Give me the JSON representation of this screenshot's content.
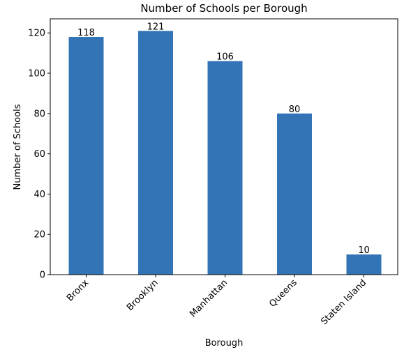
{
  "chart_data": {
    "type": "bar",
    "title": "Number of Schools per Borough",
    "xlabel": "Borough",
    "ylabel": "Number of Schools",
    "categories": [
      "Bronx",
      "Brooklyn",
      "Manhattan",
      "Queens",
      "Staten Island"
    ],
    "values": [
      118,
      121,
      106,
      80,
      10
    ],
    "data_labels": [
      "118",
      "121",
      "106",
      "80",
      "10"
    ],
    "ylim": [
      0,
      127
    ],
    "yticks": [
      0,
      20,
      40,
      60,
      80,
      100,
      120
    ],
    "bar_color": "#3274b5",
    "grid": false,
    "legend": "none"
  }
}
